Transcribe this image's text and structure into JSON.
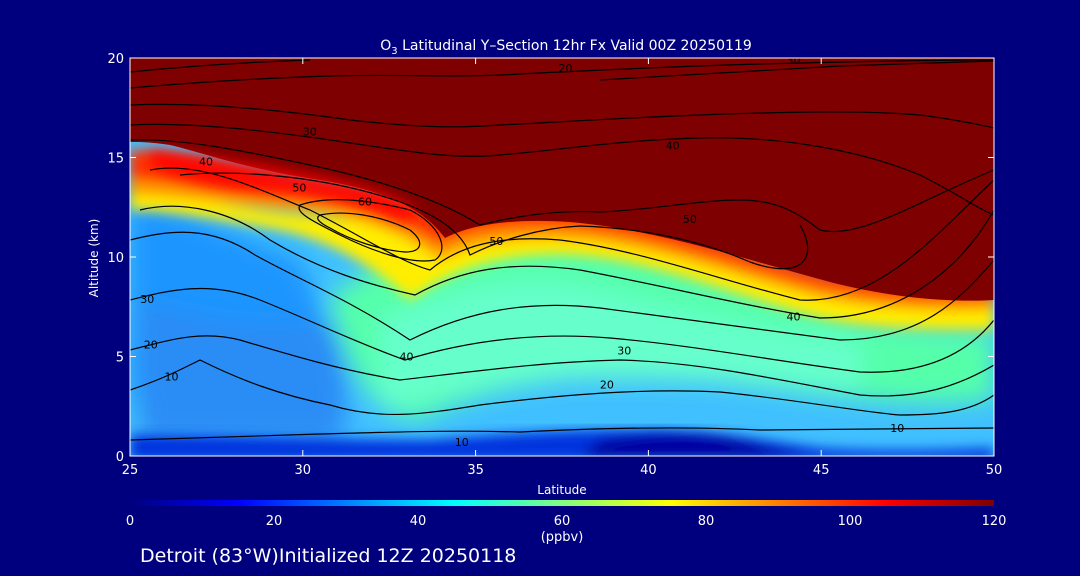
{
  "chart_data": {
    "type": "heatmap",
    "title_prefix": "O",
    "title_sub": "3",
    "title_rest": " Latitudinal Y–Section 12hr  Fx Valid 00Z 20250119",
    "xlabel": "Latitude",
    "ylabel": "Altitude (km)",
    "xlim": [
      25,
      50
    ],
    "ylim": [
      0,
      20
    ],
    "x_ticks": [
      "25",
      "30",
      "35",
      "40",
      "45",
      "50"
    ],
    "y_ticks": [
      "0",
      "5",
      "10",
      "15",
      "20"
    ],
    "colorbar": {
      "range": [
        0,
        120
      ],
      "ticks": [
        "0",
        "20",
        "40",
        "60",
        "80",
        "100",
        "120"
      ],
      "unit": "(ppbv)",
      "stops": [
        "#00007f",
        "#0000ff",
        "#0080ff",
        "#00ffff",
        "#80ff80",
        "#ffff00",
        "#ff8000",
        "#ff0000",
        "#7f0000"
      ]
    },
    "contour_levels": [
      10,
      20,
      30,
      40,
      50,
      60
    ],
    "contour_labels": [
      {
        "text": "10",
        "x": 26.2,
        "y": 4.0
      },
      {
        "text": "20",
        "x": 25.6,
        "y": 5.6
      },
      {
        "text": "30",
        "x": 25.5,
        "y": 7.9
      },
      {
        "text": "40",
        "x": 27.2,
        "y": 14.8
      },
      {
        "text": "30",
        "x": 30.2,
        "y": 16.3
      },
      {
        "text": "20",
        "x": 37.6,
        "y": 19.5
      },
      {
        "text": "30",
        "x": 44.2,
        "y": 19.9
      },
      {
        "text": "40",
        "x": 40.7,
        "y": 15.6
      },
      {
        "text": "50",
        "x": 29.9,
        "y": 13.5
      },
      {
        "text": "60",
        "x": 31.8,
        "y": 12.8
      },
      {
        "text": "50",
        "x": 35.6,
        "y": 10.8
      },
      {
        "text": "50",
        "x": 41.2,
        "y": 11.9
      },
      {
        "text": "40",
        "x": 44.2,
        "y": 7.0
      },
      {
        "text": "40",
        "x": 33.0,
        "y": 5.0
      },
      {
        "text": "30",
        "x": 39.3,
        "y": 5.3
      },
      {
        "text": "20",
        "x": 38.8,
        "y": 3.6
      },
      {
        "text": "10",
        "x": 34.6,
        "y": 0.7
      },
      {
        "text": "10",
        "x": 47.2,
        "y": 1.4
      }
    ]
  },
  "footer": {
    "location_text": "Detroit (83°W)Initialized 12Z 20250118"
  }
}
